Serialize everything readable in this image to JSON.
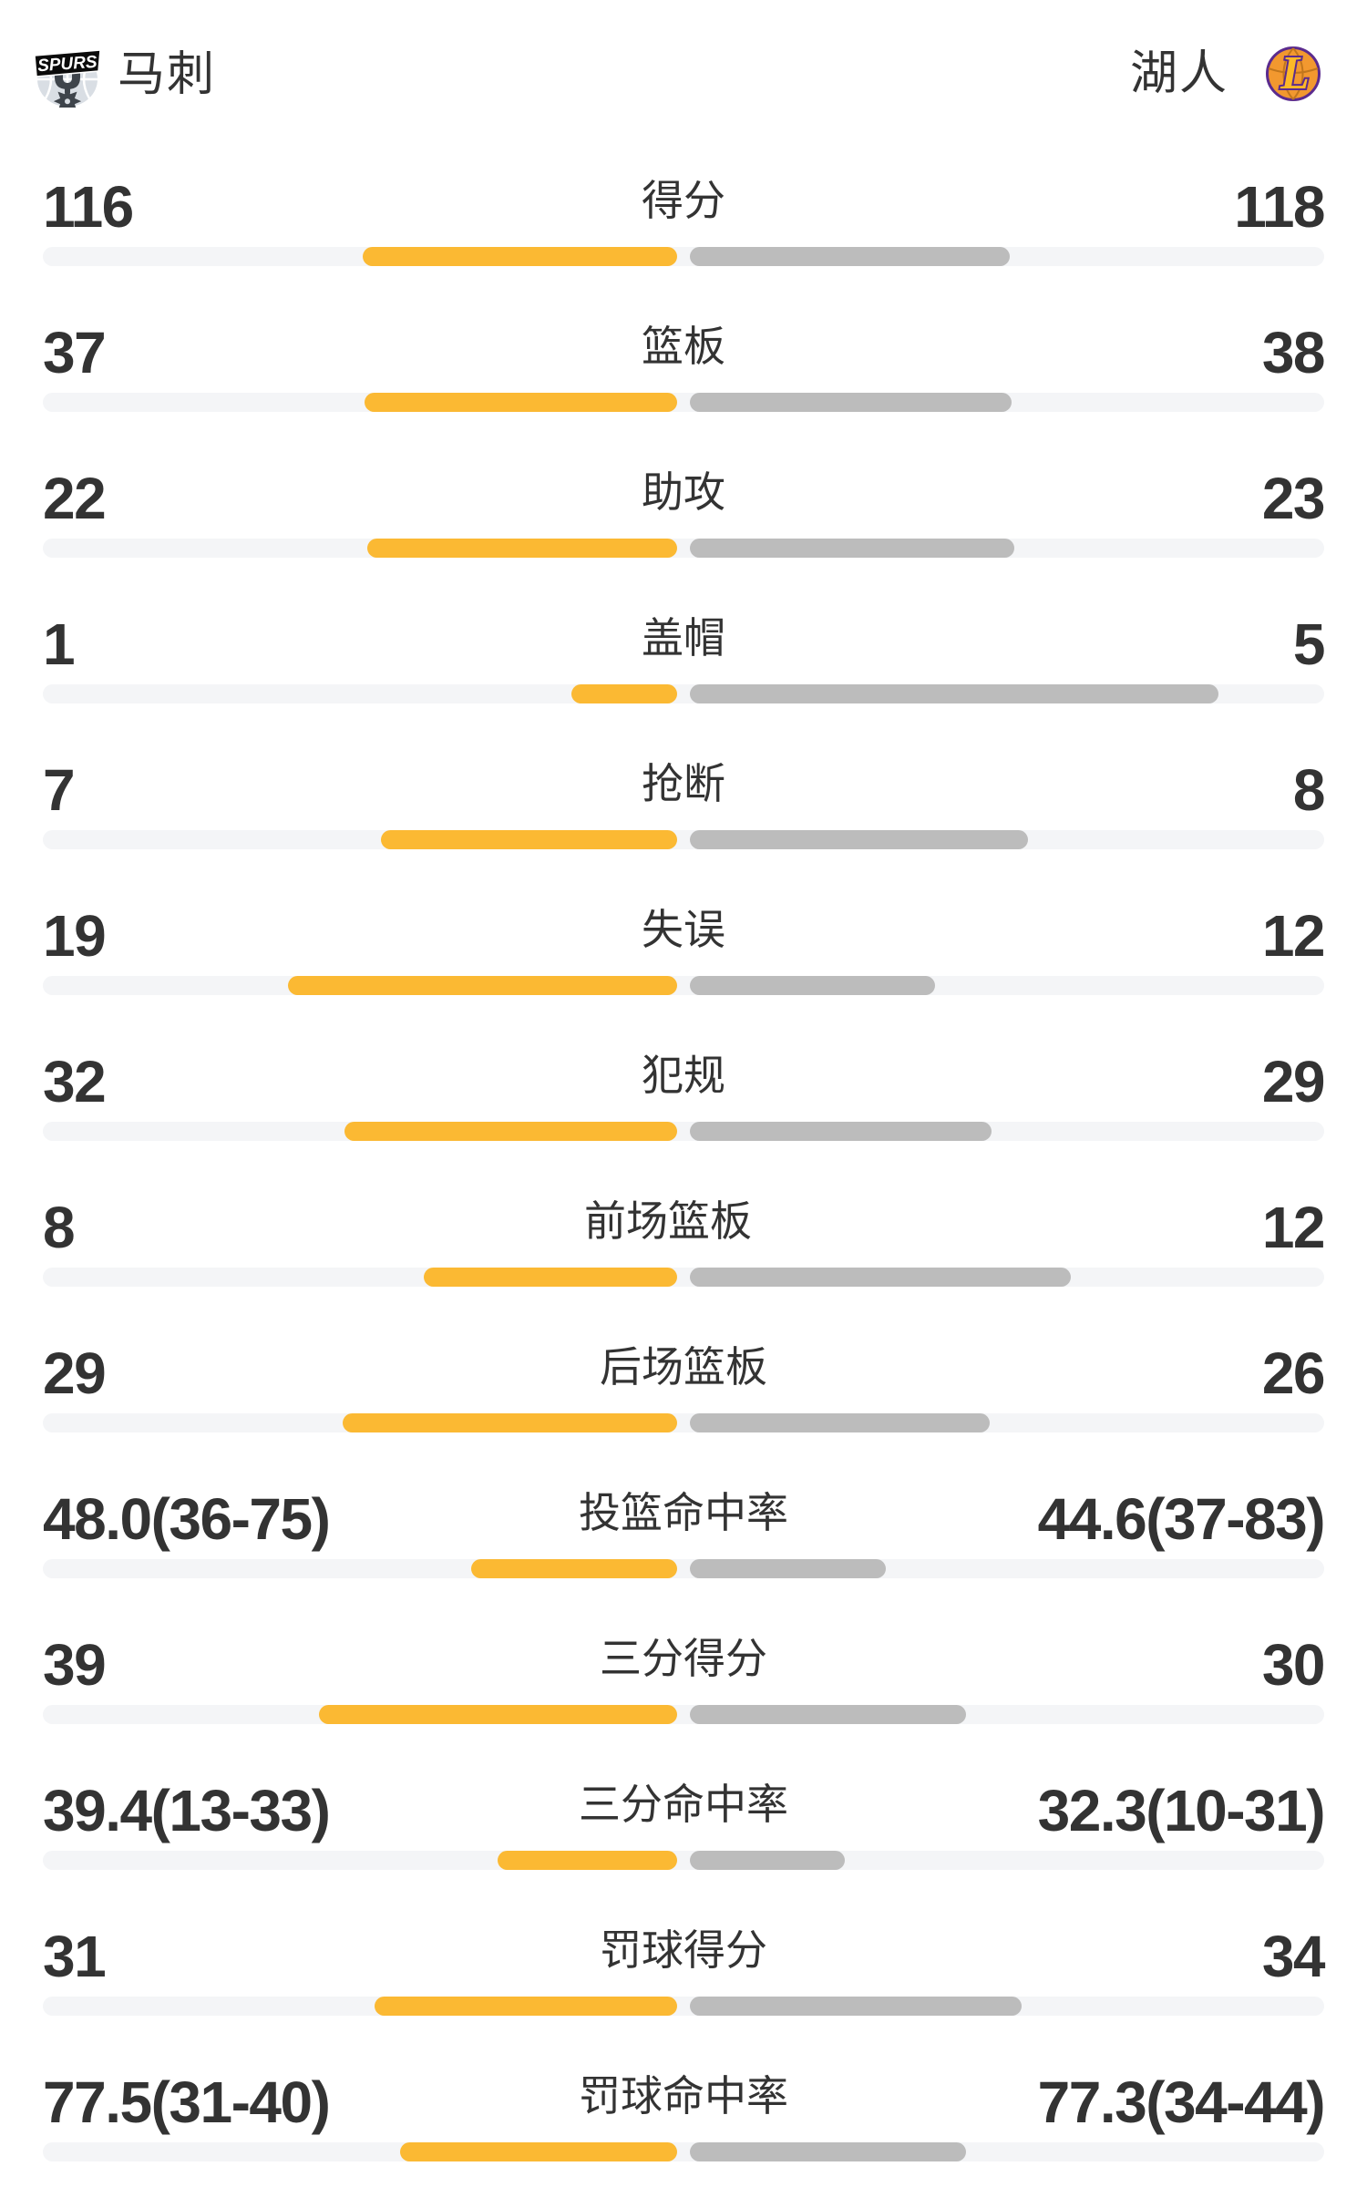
{
  "header": {
    "left_team": {
      "name": "马刺",
      "logo_text": "SPURS"
    },
    "right_team": {
      "name": "湖人",
      "logo_letter": "L"
    }
  },
  "colors": {
    "left_bar": "#FBB933",
    "right_bar": "#BCBCBC",
    "track": "#F4F5F7",
    "text": "#333333",
    "spurs_silver": "#D9DEE4",
    "spurs_dark": "#3E444B",
    "lakers_orange": "#F2982F",
    "lakers_purple": "#5B2B8E",
    "lakers_gold": "#FDB927"
  },
  "chart_data": {
    "type": "bar",
    "orientation": "horizontal-paired",
    "teams": [
      "马刺",
      "湖人"
    ],
    "legend": {
      "马刺": "#FBB933",
      "湖人": "#BCBCBC"
    },
    "bar_rule": "count rows: length = value/(left+right) of half width; percent rows: length = pct/(pct+100) of half width",
    "rows": [
      {
        "label": "得分",
        "kind": "count",
        "left": "116",
        "right": "118",
        "left_value": 116,
        "right_value": 118
      },
      {
        "label": "篮板",
        "kind": "count",
        "left": "37",
        "right": "38",
        "left_value": 37,
        "right_value": 38
      },
      {
        "label": "助攻",
        "kind": "count",
        "left": "22",
        "right": "23",
        "left_value": 22,
        "right_value": 23
      },
      {
        "label": "盖帽",
        "kind": "count",
        "left": "1",
        "right": "5",
        "left_value": 1,
        "right_value": 5
      },
      {
        "label": "抢断",
        "kind": "count",
        "left": "7",
        "right": "8",
        "left_value": 7,
        "right_value": 8
      },
      {
        "label": "失误",
        "kind": "count",
        "left": "19",
        "right": "12",
        "left_value": 19,
        "right_value": 12
      },
      {
        "label": "犯规",
        "kind": "count",
        "left": "32",
        "right": "29",
        "left_value": 32,
        "right_value": 29
      },
      {
        "label": "前场篮板",
        "kind": "count",
        "left": "8",
        "right": "12",
        "left_value": 8,
        "right_value": 12
      },
      {
        "label": "后场篮板",
        "kind": "count",
        "left": "29",
        "right": "26",
        "left_value": 29,
        "right_value": 26
      },
      {
        "label": "投篮命中率",
        "kind": "percent",
        "left": "48.0(36-75)",
        "right": "44.6(37-83)",
        "left_value": 48.0,
        "right_value": 44.6
      },
      {
        "label": "三分得分",
        "kind": "count",
        "left": "39",
        "right": "30",
        "left_value": 39,
        "right_value": 30
      },
      {
        "label": "三分命中率",
        "kind": "percent",
        "left": "39.4(13-33)",
        "right": "32.3(10-31)",
        "left_value": 39.4,
        "right_value": 32.3
      },
      {
        "label": "罚球得分",
        "kind": "count",
        "left": "31",
        "right": "34",
        "left_value": 31,
        "right_value": 34
      },
      {
        "label": "罚球命中率",
        "kind": "percent",
        "left": "77.5(31-40)",
        "right": "77.3(34-44)",
        "left_value": 77.5,
        "right_value": 77.3
      }
    ]
  }
}
